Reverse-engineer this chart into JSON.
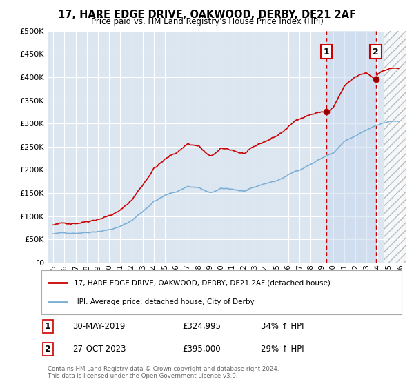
{
  "title": "17, HARE EDGE DRIVE, OAKWOOD, DERBY, DE21 2AF",
  "subtitle": "Price paid vs. HM Land Registry's House Price Index (HPI)",
  "legend_line1": "17, HARE EDGE DRIVE, OAKWOOD, DERBY, DE21 2AF (detached house)",
  "legend_line2": "HPI: Average price, detached house, City of Derby",
  "event1_date": "30-MAY-2019",
  "event1_price": "£324,995",
  "event1_hpi": "34% ↑ HPI",
  "event1_year": 2019.41,
  "event1_value": 324995,
  "event2_date": "27-OCT-2023",
  "event2_price": "£395,000",
  "event2_hpi": "29% ↑ HPI",
  "event2_year": 2023.82,
  "event2_value": 395000,
  "footer": "Contains HM Land Registry data © Crown copyright and database right 2024.\nThis data is licensed under the Open Government Licence v3.0.",
  "ylim": [
    0,
    500000
  ],
  "xlim": [
    1994.5,
    2026.5
  ],
  "hatch_start": 2024.5,
  "red_color": "#cc0000",
  "blue_color": "#7bafd4",
  "bg_color": "#dce6f1",
  "grid_color": "#ffffff",
  "event_box_color": "#cc0000",
  "highlight_bg": "#dce6f4"
}
